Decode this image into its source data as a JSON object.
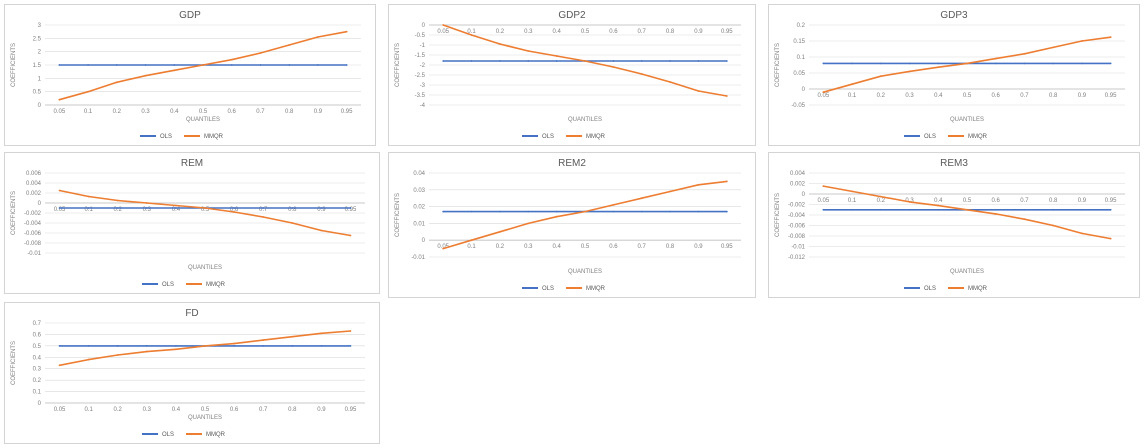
{
  "colors": {
    "ols": "#4472c4",
    "mmqr": "#ed7d31",
    "grid": "#d9d9d9",
    "text": "#595959"
  },
  "legend": {
    "ols": "OLS",
    "mmqr": "MMQR"
  },
  "chart_data": [
    {
      "type": "line",
      "title": "GDP",
      "xlabel": "QUANTILES",
      "ylabel": "COEFFICIENTS",
      "x": [
        "0.05",
        "0.1",
        "0.2",
        "0.3",
        "0.4",
        "0.5",
        "0.6",
        "0.7",
        "0.8",
        "0.9",
        "0.95"
      ],
      "y_ticks": [
        "0",
        "0.5",
        "1",
        "1.5",
        "2",
        "2.5",
        "3"
      ],
      "ylim": [
        0,
        3
      ],
      "series": [
        {
          "name": "OLS",
          "values": [
            1.5,
            1.5,
            1.5,
            1.5,
            1.5,
            1.5,
            1.5,
            1.5,
            1.5,
            1.5,
            1.5
          ]
        },
        {
          "name": "MMQR",
          "values": [
            0.2,
            0.5,
            0.85,
            1.1,
            1.3,
            1.5,
            1.7,
            1.95,
            2.25,
            2.55,
            2.75
          ]
        }
      ]
    },
    {
      "type": "line",
      "title": "GDP2",
      "xlabel": "QUANTILES",
      "ylabel": "COEFFICIENTS",
      "x": [
        "0.05",
        "0.1",
        "0.2",
        "0.3",
        "0.4",
        "0.5",
        "0.6",
        "0.7",
        "0.8",
        "0.9",
        "0.95"
      ],
      "y_ticks": [
        "0",
        "-0.5",
        "-1",
        "-1.5",
        "-2",
        "-2.5",
        "-3",
        "-3.5",
        "-4"
      ],
      "ylim": [
        -4,
        0
      ],
      "series": [
        {
          "name": "OLS",
          "values": [
            -1.8,
            -1.8,
            -1.8,
            -1.8,
            -1.8,
            -1.8,
            -1.8,
            -1.8,
            -1.8,
            -1.8,
            -1.8
          ]
        },
        {
          "name": "MMQR",
          "values": [
            0,
            -0.5,
            -0.95,
            -1.3,
            -1.55,
            -1.8,
            -2.1,
            -2.45,
            -2.85,
            -3.3,
            -3.55
          ]
        }
      ]
    },
    {
      "type": "line",
      "title": "GDP3",
      "xlabel": "QUANTILES",
      "ylabel": "COEFFICIENTS",
      "x": [
        "0.05",
        "0.1",
        "0.2",
        "0.3",
        "0.4",
        "0.5",
        "0.6",
        "0.7",
        "0.8",
        "0.9",
        "0.95"
      ],
      "y_ticks": [
        "-0.05",
        "0",
        "0.05",
        "0.1",
        "0.15",
        "0.2"
      ],
      "ylim": [
        -0.05,
        0.2
      ],
      "series": [
        {
          "name": "OLS",
          "values": [
            0.08,
            0.08,
            0.08,
            0.08,
            0.08,
            0.08,
            0.08,
            0.08,
            0.08,
            0.08,
            0.08
          ]
        },
        {
          "name": "MMQR",
          "values": [
            -0.01,
            0.015,
            0.04,
            0.055,
            0.068,
            0.08,
            0.095,
            0.11,
            0.13,
            0.15,
            0.162
          ]
        }
      ]
    },
    {
      "type": "line",
      "title": "REM",
      "xlabel": "QUANTILES",
      "ylabel": "COEFFICIENTS",
      "x": [
        "0.05",
        "0.1",
        "0.2",
        "0.3",
        "0.4",
        "0.5",
        "0.6",
        "0.7",
        "0.8",
        "0.9",
        "0.95"
      ],
      "y_ticks": [
        "0.006",
        "0.004",
        "0.002",
        "0",
        "-0.002",
        "-0.004",
        "-0.006",
        "-0.008",
        "-0.01"
      ],
      "ylim": [
        -0.01,
        0.006
      ],
      "series": [
        {
          "name": "OLS",
          "values": [
            -0.001,
            -0.001,
            -0.001,
            -0.001,
            -0.001,
            -0.001,
            -0.001,
            -0.001,
            -0.001,
            -0.001,
            -0.001
          ]
        },
        {
          "name": "MMQR",
          "values": [
            0.0025,
            0.0013,
            0.0005,
            0,
            -0.0005,
            -0.001,
            -0.0018,
            -0.0028,
            -0.004,
            -0.0055,
            -0.0065
          ]
        }
      ]
    },
    {
      "type": "line",
      "title": "REM2",
      "xlabel": "QUANTILES",
      "ylabel": "COEFFICIENTS",
      "x": [
        "0.05",
        "0.1",
        "0.2",
        "0.3",
        "0.4",
        "0.5",
        "0.6",
        "0.7",
        "0.8",
        "0.9",
        "0.95"
      ],
      "y_ticks": [
        "0.04",
        "0.03",
        "0.02",
        "0.01",
        "0",
        "-0.01"
      ],
      "ylim": [
        -0.01,
        0.04
      ],
      "series": [
        {
          "name": "OLS",
          "values": [
            0.017,
            0.017,
            0.017,
            0.017,
            0.017,
            0.017,
            0.017,
            0.017,
            0.017,
            0.017,
            0.017
          ]
        },
        {
          "name": "MMQR",
          "values": [
            -0.005,
            0.0,
            0.005,
            0.01,
            0.014,
            0.017,
            0.021,
            0.025,
            0.029,
            0.033,
            0.035
          ]
        }
      ]
    },
    {
      "type": "line",
      "title": "REM3",
      "xlabel": "QUANTILES",
      "ylabel": "COEFFICIENTS",
      "x": [
        "0.05",
        "0.1",
        "0.2",
        "0.3",
        "0.4",
        "0.5",
        "0.6",
        "0.7",
        "0.8",
        "0.9",
        "0.95"
      ],
      "y_ticks": [
        "0.004",
        "0.002",
        "0",
        "-0.002",
        "-0.004",
        "-0.006",
        "-0.008",
        "-0.01",
        "-0.012"
      ],
      "ylim": [
        -0.012,
        0.004
      ],
      "series": [
        {
          "name": "OLS",
          "values": [
            -0.003,
            -0.003,
            -0.003,
            -0.003,
            -0.003,
            -0.003,
            -0.003,
            -0.003,
            -0.003,
            -0.003,
            -0.003
          ]
        },
        {
          "name": "MMQR",
          "values": [
            0.0015,
            0.0005,
            -0.0005,
            -0.0015,
            -0.0022,
            -0.003,
            -0.0038,
            -0.0048,
            -0.006,
            -0.0075,
            -0.0085
          ]
        }
      ]
    },
    {
      "type": "line",
      "title": "FD",
      "xlabel": "QUANTILES",
      "ylabel": "COEFFICIENTS",
      "x": [
        "0.05",
        "0.1",
        "0.2",
        "0.3",
        "0.4",
        "0.5",
        "0.6",
        "0.7",
        "0.8",
        "0.9",
        "0.95"
      ],
      "y_ticks": [
        "0",
        "0.1",
        "0.2",
        "0.3",
        "0.4",
        "0.5",
        "0.6",
        "0.7"
      ],
      "ylim": [
        0,
        0.7
      ],
      "series": [
        {
          "name": "OLS",
          "values": [
            0.5,
            0.5,
            0.5,
            0.5,
            0.5,
            0.5,
            0.5,
            0.5,
            0.5,
            0.5,
            0.5
          ]
        },
        {
          "name": "MMQR",
          "values": [
            0.33,
            0.38,
            0.42,
            0.45,
            0.47,
            0.5,
            0.52,
            0.55,
            0.58,
            0.61,
            0.63
          ]
        }
      ]
    }
  ]
}
